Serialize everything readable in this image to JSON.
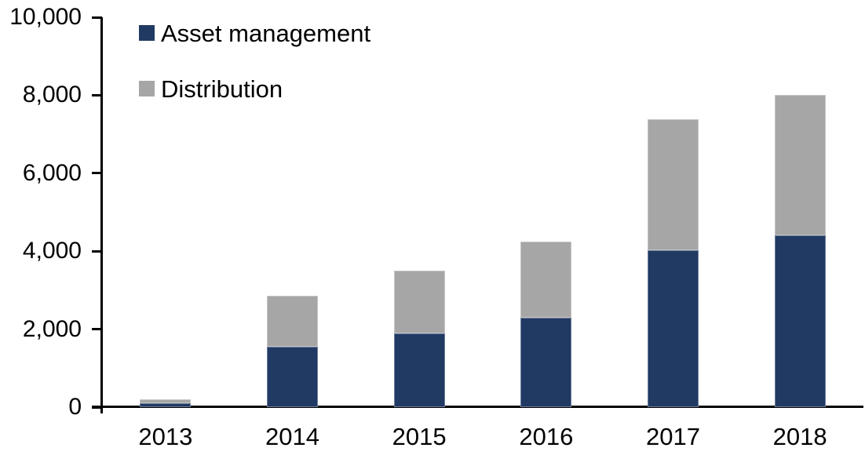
{
  "chart_data": {
    "type": "bar",
    "stacked": true,
    "title": "",
    "xlabel": "",
    "ylabel": "",
    "categories": [
      "2013",
      "2014",
      "2015",
      "2016",
      "2017",
      "2018"
    ],
    "series": [
      {
        "name": "Asset management",
        "color": "#213A64",
        "values": [
          100,
          1550,
          1900,
          2300,
          4030,
          4400
        ]
      },
      {
        "name": "Distribution",
        "color": "#A6A6A6",
        "values": [
          100,
          1300,
          1600,
          1950,
          3350,
          3600
        ]
      }
    ],
    "totals": [
      200,
      2850,
      3500,
      4250,
      7380,
      8000
    ],
    "ylim": [
      0,
      10000
    ],
    "yticks": [
      {
        "value": 0,
        "label": "0"
      },
      {
        "value": 2000,
        "label": "2,000"
      },
      {
        "value": 4000,
        "label": "4,000"
      },
      {
        "value": 6000,
        "label": "6,000"
      },
      {
        "value": 8000,
        "label": "8,000"
      },
      {
        "value": 10000,
        "label": "10,000"
      }
    ],
    "grid": false,
    "legend_position": "top-left",
    "axis_color": "#000000",
    "background_color": "#FFFFFF"
  }
}
